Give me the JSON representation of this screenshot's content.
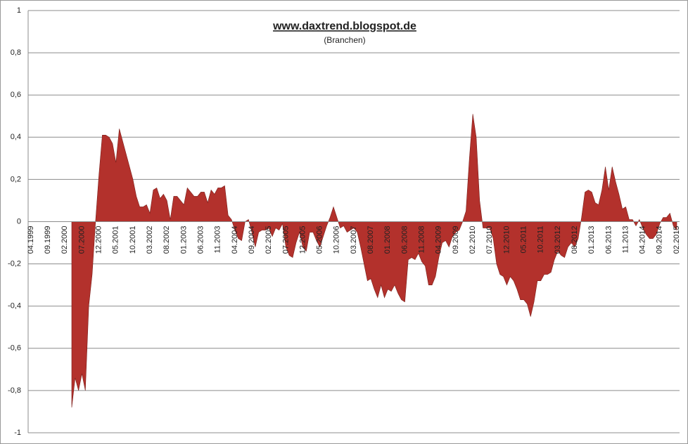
{
  "chart_data": {
    "type": "area",
    "title": "www.daxtrend.blogspot.de",
    "subtitle": "(Branchen)",
    "categories": [
      "04.1999",
      null,
      null,
      null,
      null,
      "09.1999",
      null,
      null,
      null,
      null,
      "02.2000",
      null,
      null,
      null,
      null,
      "07.2000",
      null,
      null,
      null,
      null,
      "12.2000",
      null,
      null,
      null,
      null,
      "05.2001",
      null,
      null,
      null,
      null,
      "10.2001",
      null,
      null,
      null,
      null,
      "03.2002",
      null,
      null,
      null,
      null,
      "08.2002",
      null,
      null,
      null,
      null,
      "01.2003",
      null,
      null,
      null,
      null,
      "06.2003",
      null,
      null,
      null,
      null,
      "11.2003",
      null,
      null,
      null,
      null,
      "04.2004",
      null,
      null,
      null,
      null,
      "09.2004",
      null,
      null,
      null,
      null,
      "02.2005",
      null,
      null,
      null,
      null,
      "07.2005",
      null,
      null,
      null,
      null,
      "12.2005",
      null,
      null,
      null,
      null,
      "05.2006",
      null,
      null,
      null,
      null,
      "10.2006",
      null,
      null,
      null,
      null,
      "03.2007",
      null,
      null,
      null,
      null,
      "08.2007",
      null,
      null,
      null,
      null,
      "01.2008",
      null,
      null,
      null,
      null,
      "06.2008",
      null,
      null,
      null,
      null,
      "11.2008",
      null,
      null,
      null,
      null,
      "04.2009",
      null,
      null,
      null,
      null,
      "09.2009",
      null,
      null,
      null,
      null,
      "02.2010",
      null,
      null,
      null,
      null,
      "07.2010",
      null,
      null,
      null,
      null,
      "12.2010",
      null,
      null,
      null,
      null,
      "05.2011",
      null,
      null,
      null,
      null,
      "10.2011",
      null,
      null,
      null,
      null,
      "03.2012",
      null,
      null,
      null,
      null,
      "08.2012",
      null,
      null,
      null,
      null,
      "01.2013",
      null,
      null,
      null,
      null,
      "06.2013",
      null,
      null,
      null,
      null,
      "11.2013",
      null,
      null,
      null,
      null,
      "04.2014",
      null,
      null,
      null,
      null,
      "09.2014",
      null,
      null,
      null,
      null,
      "02.2015"
    ],
    "values": [
      null,
      null,
      null,
      null,
      null,
      null,
      null,
      null,
      null,
      null,
      null,
      null,
      -0.88,
      -0.74,
      -0.8,
      -0.72,
      -0.8,
      -0.4,
      -0.25,
      0.0,
      0.22,
      0.41,
      0.41,
      0.4,
      0.37,
      0.28,
      0.44,
      0.38,
      0.32,
      0.26,
      0.2,
      0.12,
      0.07,
      0.07,
      0.08,
      0.04,
      0.15,
      0.16,
      0.11,
      0.13,
      0.1,
      0.01,
      0.12,
      0.12,
      0.1,
      0.08,
      0.16,
      0.14,
      0.12,
      0.12,
      0.14,
      0.14,
      0.09,
      0.15,
      0.13,
      0.16,
      0.16,
      0.17,
      0.03,
      0.01,
      -0.04,
      -0.08,
      -0.09,
      0.0,
      0.01,
      -0.05,
      -0.12,
      -0.05,
      -0.04,
      -0.04,
      -0.03,
      -0.07,
      -0.03,
      -0.04,
      -0.01,
      -0.12,
      -0.16,
      -0.17,
      -0.1,
      -0.05,
      -0.12,
      -0.14,
      -0.05,
      -0.05,
      -0.09,
      -0.12,
      -0.07,
      -0.02,
      0.02,
      0.07,
      0.02,
      -0.03,
      -0.02,
      -0.05,
      -0.04,
      -0.03,
      -0.05,
      -0.12,
      -0.2,
      -0.28,
      -0.27,
      -0.32,
      -0.36,
      -0.3,
      -0.36,
      -0.32,
      -0.33,
      -0.3,
      -0.34,
      -0.37,
      -0.38,
      -0.18,
      -0.17,
      -0.18,
      -0.15,
      -0.19,
      -0.21,
      -0.3,
      -0.3,
      -0.26,
      -0.17,
      -0.1,
      -0.09,
      -0.12,
      -0.07,
      -0.05,
      -0.04,
      0.0,
      0.05,
      0.3,
      0.51,
      0.4,
      0.1,
      -0.03,
      -0.03,
      -0.03,
      -0.08,
      -0.2,
      -0.25,
      -0.26,
      -0.3,
      -0.26,
      -0.28,
      -0.32,
      -0.37,
      -0.37,
      -0.39,
      -0.45,
      -0.38,
      -0.28,
      -0.28,
      -0.25,
      -0.25,
      -0.24,
      -0.18,
      -0.14,
      -0.16,
      -0.17,
      -0.12,
      -0.1,
      -0.12,
      -0.08,
      0.02,
      0.14,
      0.15,
      0.14,
      0.09,
      0.08,
      0.15,
      0.26,
      0.15,
      0.26,
      0.19,
      0.13,
      0.06,
      0.07,
      0.01,
      0.01,
      -0.02,
      0.01,
      -0.03,
      -0.06,
      -0.08,
      -0.08,
      -0.06,
      -0.01,
      0.02,
      0.02,
      0.04,
      -0.02,
      -0.04
    ],
    "color": "#b3312c",
    "ylim": [
      -1,
      1
    ],
    "yticks": [
      -1,
      {
        "value": -0.8,
        "label": "-0,8"
      },
      {
        "value": -0.6,
        "label": "-0,6"
      },
      {
        "value": -0.4,
        "label": "-0,4"
      },
      {
        "value": -0.2,
        "label": "-0,2"
      },
      0,
      {
        "value": 0.2,
        "label": "0,2"
      },
      {
        "value": 0.4,
        "label": "0,4"
      },
      {
        "value": 0.6,
        "label": "0,6"
      },
      {
        "value": 0.8,
        "label": "0,8"
      },
      1
    ],
    "grid": true
  }
}
